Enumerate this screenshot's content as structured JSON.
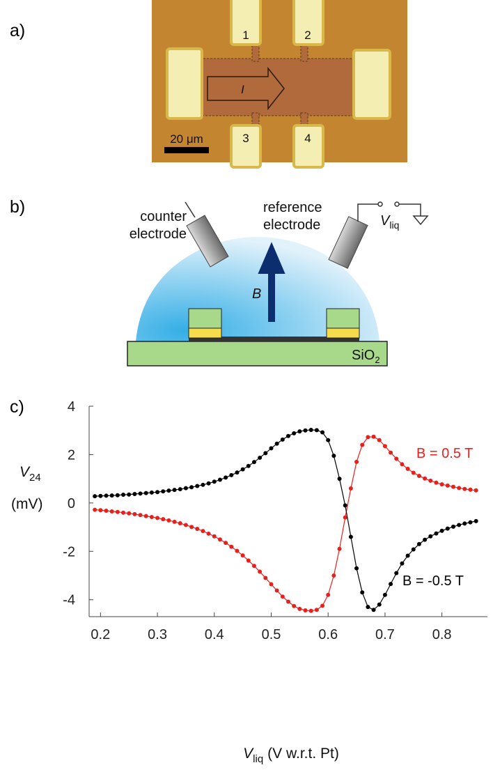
{
  "panel_labels": [
    "a)",
    "b)",
    "c)"
  ],
  "panel_a": {
    "pad_labels": [
      "1",
      "2",
      "3",
      "4"
    ],
    "current_label": "I",
    "scale_bar": "20 μm"
  },
  "panel_b": {
    "counter_electrode": [
      "counter",
      "electrode"
    ],
    "reference_electrode": [
      "reference",
      "electrode"
    ],
    "potential": {
      "symbol": "V",
      "sub": "liq"
    },
    "field": "B",
    "substrate": {
      "text": "SiO",
      "sub": "2"
    }
  },
  "chart_data": {
    "type": "line",
    "xlabel": {
      "symbol": "V",
      "sub": "liq",
      "text": "(V w.r.t. Pt)"
    },
    "ylabel": {
      "symbol": "V",
      "sub": "24",
      "unit": "(mV)"
    },
    "x": [
      0.19,
      0.2,
      0.21,
      0.22,
      0.23,
      0.24,
      0.25,
      0.26,
      0.27,
      0.28,
      0.29,
      0.3,
      0.31,
      0.32,
      0.33,
      0.34,
      0.35,
      0.36,
      0.37,
      0.38,
      0.39,
      0.4,
      0.41,
      0.42,
      0.43,
      0.44,
      0.45,
      0.46,
      0.47,
      0.48,
      0.49,
      0.5,
      0.51,
      0.52,
      0.53,
      0.54,
      0.55,
      0.56,
      0.57,
      0.58,
      0.59,
      0.6,
      0.61,
      0.62,
      0.63,
      0.64,
      0.65,
      0.66,
      0.67,
      0.68,
      0.69,
      0.7,
      0.71,
      0.72,
      0.73,
      0.74,
      0.75,
      0.76,
      0.77,
      0.78,
      0.79,
      0.8,
      0.81,
      0.82,
      0.83,
      0.84,
      0.85,
      0.86
    ],
    "series": [
      {
        "name": "B = 0.5 T",
        "color": "#e8201c",
        "values": [
          -0.28,
          -0.3,
          -0.32,
          -0.35,
          -0.37,
          -0.4,
          -0.43,
          -0.46,
          -0.5,
          -0.54,
          -0.58,
          -0.62,
          -0.67,
          -0.72,
          -0.78,
          -0.84,
          -0.91,
          -0.99,
          -1.07,
          -1.16,
          -1.27,
          -1.38,
          -1.51,
          -1.65,
          -1.81,
          -1.98,
          -2.17,
          -2.38,
          -2.6,
          -2.84,
          -3.1,
          -3.36,
          -3.62,
          -3.87,
          -4.08,
          -4.26,
          -4.38,
          -4.44,
          -4.46,
          -4.42,
          -4.25,
          -3.8,
          -3.0,
          -1.9,
          -0.6,
          0.6,
          1.7,
          2.4,
          2.72,
          2.74,
          2.6,
          2.35,
          2.08,
          1.83,
          1.6,
          1.41,
          1.25,
          1.12,
          1.01,
          0.92,
          0.84,
          0.77,
          0.72,
          0.67,
          0.62,
          0.58,
          0.55,
          0.52
        ]
      },
      {
        "name": "B = -0.5 T",
        "color": "#000000",
        "values": [
          0.28,
          0.29,
          0.3,
          0.31,
          0.32,
          0.34,
          0.35,
          0.37,
          0.39,
          0.41,
          0.43,
          0.45,
          0.48,
          0.51,
          0.54,
          0.57,
          0.61,
          0.65,
          0.7,
          0.75,
          0.81,
          0.88,
          0.96,
          1.05,
          1.15,
          1.26,
          1.39,
          1.53,
          1.69,
          1.87,
          2.06,
          2.26,
          2.45,
          2.62,
          2.77,
          2.88,
          2.96,
          3.0,
          3.02,
          3.01,
          2.92,
          2.6,
          1.95,
          1.0,
          -0.1,
          -1.4,
          -2.7,
          -3.7,
          -4.3,
          -4.42,
          -4.2,
          -3.8,
          -3.35,
          -2.9,
          -2.5,
          -2.18,
          -1.92,
          -1.7,
          -1.52,
          -1.38,
          -1.26,
          -1.15,
          -1.06,
          -0.98,
          -0.91,
          -0.85,
          -0.8,
          -0.75
        ]
      }
    ],
    "xlim": [
      0.18,
      0.88
    ],
    "ylim": [
      -4.7,
      4
    ],
    "xticks": [
      0.2,
      0.3,
      0.4,
      0.5,
      0.6,
      0.7,
      0.8
    ],
    "yticks": [
      -4,
      -2,
      0,
      2,
      4
    ],
    "grid": false
  }
}
